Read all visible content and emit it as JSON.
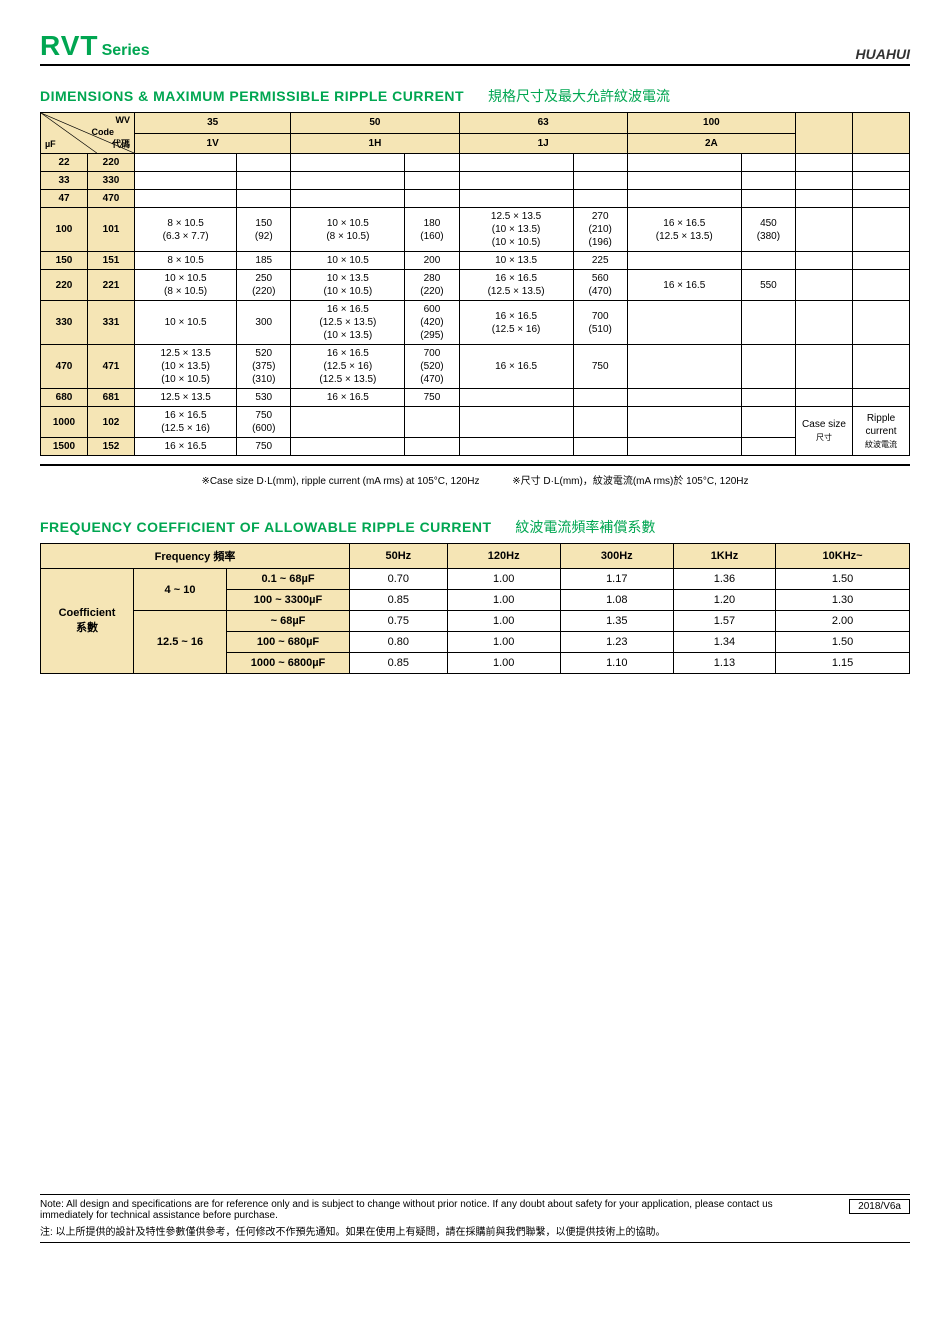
{
  "header": {
    "series_big": "RVT",
    "series_small": "Series",
    "brand": "HUAHUI"
  },
  "section1": {
    "title_en": "DIMENSIONS & MAXIMUM PERMISSIBLE RIPPLE CURRENT",
    "title_cn": "規格尺寸及最大允許紋波電流",
    "wv_label": "WV",
    "code_label": "Code",
    "uf_label": "µF",
    "dm_label": "代碼",
    "case_size_label": "Case size",
    "case_size_cn": "尺寸",
    "ripple_label1": "Ripple",
    "ripple_label2": "current",
    "ripple_cn": "紋波電流",
    "wv_cols": [
      "35",
      "50",
      "63",
      "100"
    ],
    "code_cols": [
      "1V",
      "1H",
      "1J",
      "2A"
    ],
    "rows": [
      {
        "uf": "22",
        "code": "220",
        "c": [
          "",
          "",
          "",
          "",
          "",
          "",
          "",
          ""
        ]
      },
      {
        "uf": "33",
        "code": "330",
        "c": [
          "",
          "",
          "",
          "",
          "",
          "",
          "",
          ""
        ]
      },
      {
        "uf": "47",
        "code": "470",
        "c": [
          "",
          "",
          "",
          "",
          "",
          "",
          "",
          ""
        ]
      },
      {
        "uf": "100",
        "code": "101",
        "c": [
          "8 × 10.5\n(6.3 × 7.7)",
          "150\n(92)",
          "10 × 10.5\n(8 × 10.5)",
          "180\n(160)",
          "12.5 × 13.5\n(10 × 13.5)\n(10 × 10.5)",
          "270\n(210)\n(196)",
          "16 × 16.5\n(12.5 × 13.5)",
          "450\n(380)"
        ]
      },
      {
        "uf": "150",
        "code": "151",
        "c": [
          "8 × 10.5",
          "185",
          "10 × 10.5",
          "200",
          "10 × 13.5",
          "225",
          "",
          ""
        ]
      },
      {
        "uf": "220",
        "code": "221",
        "c": [
          "10 × 10.5\n(8 × 10.5)",
          "250\n(220)",
          "10 × 13.5\n(10 × 10.5)",
          "280\n(220)",
          "16 × 16.5\n(12.5 × 13.5)",
          "560\n(470)",
          "16 × 16.5",
          "550"
        ]
      },
      {
        "uf": "330",
        "code": "331",
        "c": [
          "10 × 10.5",
          "300",
          "16 × 16.5\n(12.5 × 13.5)\n(10 × 13.5)",
          "600\n(420)\n(295)",
          "16 × 16.5\n(12.5 × 16)",
          "700\n(510)",
          "",
          ""
        ]
      },
      {
        "uf": "470",
        "code": "471",
        "c": [
          "12.5 × 13.5\n(10 × 13.5)\n(10 × 10.5)",
          "520\n(375)\n(310)",
          "16 × 16.5\n(12.5 × 16)\n(12.5 × 13.5)",
          "700\n(520)\n(470)",
          "16 × 16.5",
          "750",
          "",
          ""
        ]
      },
      {
        "uf": "680",
        "code": "681",
        "c": [
          "12.5 × 13.5",
          "530",
          "16 × 16.5",
          "750",
          "",
          "",
          "",
          ""
        ]
      },
      {
        "uf": "1000",
        "code": "102",
        "c": [
          "16 × 16.5\n(12.5 × 16)",
          "750\n(600)",
          "",
          "",
          "",
          "",
          "",
          ""
        ]
      },
      {
        "uf": "1500",
        "code": "152",
        "c": [
          "16 × 16.5",
          "750",
          "",
          "",
          "",
          "",
          "",
          ""
        ]
      }
    ],
    "caption_left": "※Case size   D·L(mm), ripple current (mA rms) at 105°C, 120Hz",
    "caption_right": "※尺寸      D·L(mm)，紋波電流(mA rms)於  105°C, 120Hz"
  },
  "section2": {
    "title_en": "FREQUENCY COEFFICIENT OF ALLOWABLE RIPPLE CURRENT",
    "title_cn": "紋波電流頻率補償系數",
    "freq_label": "Frequency 頻率",
    "coef_label1": "Coefficient",
    "coef_label2": "系數",
    "freq_cols": [
      "50Hz",
      "120Hz",
      "300Hz",
      "1KHz",
      "10KHz~"
    ],
    "groups": [
      {
        "range": "4 ~ 10",
        "rows": [
          {
            "cap": "0.1 ~ 68µF",
            "v": [
              "0.70",
              "1.00",
              "1.17",
              "1.36",
              "1.50"
            ]
          },
          {
            "cap": "100 ~ 3300µF",
            "v": [
              "0.85",
              "1.00",
              "1.08",
              "1.20",
              "1.30"
            ]
          }
        ]
      },
      {
        "range": "12.5 ~ 16",
        "rows": [
          {
            "cap": "~ 68µF",
            "v": [
              "0.75",
              "1.00",
              "1.35",
              "1.57",
              "2.00"
            ]
          },
          {
            "cap": "100 ~ 680µF",
            "v": [
              "0.80",
              "1.00",
              "1.23",
              "1.34",
              "1.50"
            ]
          },
          {
            "cap": "1000 ~ 6800µF",
            "v": [
              "0.85",
              "1.00",
              "1.10",
              "1.13",
              "1.15"
            ]
          }
        ]
      }
    ]
  },
  "footer": {
    "note_en": "Note: All design and specifications are for reference only and is subject to change without prior notice. If any doubt about safety for your application, please contact us immediately for technical assistance before purchase.",
    "note_cn": "注:  以上所提供的設計及特性參數僅供參考，任何修改不作預先通知。如果在使用上有疑問，請在採購前與我們聯繫，以便提供技術上的協助。",
    "version": "2018/V6a"
  }
}
